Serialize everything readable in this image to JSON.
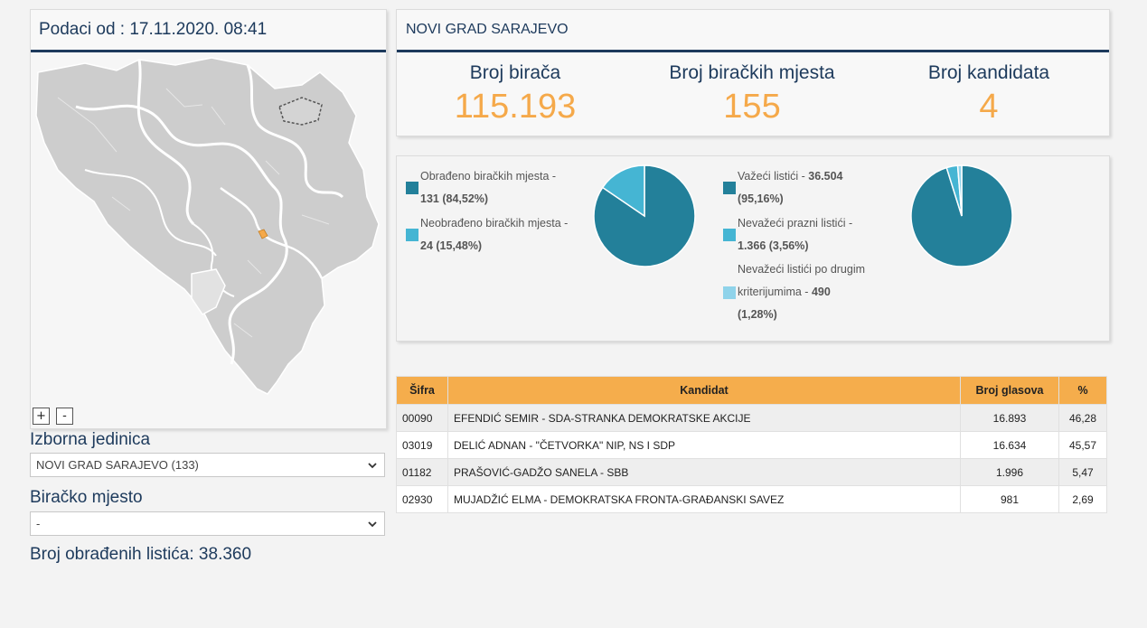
{
  "left": {
    "header": "Podaci od : 17.11.2020. 08:41",
    "zoom_in": "+",
    "zoom_out": "-",
    "unit_label": "Izborna jedinica",
    "unit_value": "NOVI GRAD SARAJEVO (133)",
    "station_label": "Biračko mjesto",
    "station_value": "-",
    "processed": "Broj obrađenih listića: 38.360"
  },
  "summary": {
    "title": "NOVI GRAD SARAJEVO",
    "voters_label": "Broj birača",
    "voters_value": "115.193",
    "stations_label": "Broj biračkih mjesta",
    "stations_value": "155",
    "candidates_label": "Broj kandidata",
    "candidates_value": "4"
  },
  "colors": {
    "accent": "#f5a94a",
    "navy": "#1d3a5c",
    "teal_dark": "#23809a",
    "teal_light": "#45b5d3",
    "teal_pale": "#8fd3ea"
  },
  "chart_data": [
    {
      "type": "pie",
      "labels": [
        "Obrađeno biračkih mjesta",
        "Neobrađeno biračkih mjesta"
      ],
      "values": [
        131,
        24
      ],
      "percent": [
        84.52,
        15.48
      ],
      "colors": [
        "#23809a",
        "#45b5d3"
      ]
    },
    {
      "type": "pie",
      "labels": [
        "Važeći listići",
        "Nevažeći prazni listići",
        "Nevažeći listići po drugim kriterijumima"
      ],
      "values": [
        36504,
        1366,
        490
      ],
      "percent": [
        95.16,
        3.56,
        1.28
      ],
      "colors": [
        "#23809a",
        "#45b5d3",
        "#8fd3ea"
      ]
    }
  ],
  "legend1": {
    "item1_line1": "Obrađeno biračkih mjesta -",
    "item1_line2": "131 (84,52%)",
    "item2_line1": "Neobrađeno biračkih mjesta -",
    "item2_line2": "24 (15,48%)"
  },
  "legend2": {
    "item1_text": "Važeći listići - ",
    "item1_value": "36.504",
    "item1_pct": "(95,16%)",
    "item2_line1": "Nevažeći prazni listići -",
    "item2_line2": "1.366 (3,56%)",
    "item3_line1": "Nevažeći listići po drugim",
    "item3_text": "kriterijumima - ",
    "item3_value": "490",
    "item3_pct": "(1,28%)"
  },
  "table": {
    "headers": [
      "Šifra",
      "Kandidat",
      "Broj glasova",
      "%"
    ],
    "rows": [
      [
        "00090",
        "EFENDIĆ SEMIR - SDA-STRANKA DEMOKRATSKE AKCIJE",
        "16.893",
        "46,28"
      ],
      [
        "03019",
        "DELIĆ ADNAN - \"ČETVORKA\" NIP, NS I SDP",
        "16.634",
        "45,57"
      ],
      [
        "01182",
        "PRAŠOVIĆ-GADŽO SANELA - SBB",
        "1.996",
        "5,47"
      ],
      [
        "02930",
        "MUJADŽIĆ ELMA - DEMOKRATSKA FRONTA-GRAĐANSKI SAVEZ",
        "981",
        "2,69"
      ]
    ]
  }
}
